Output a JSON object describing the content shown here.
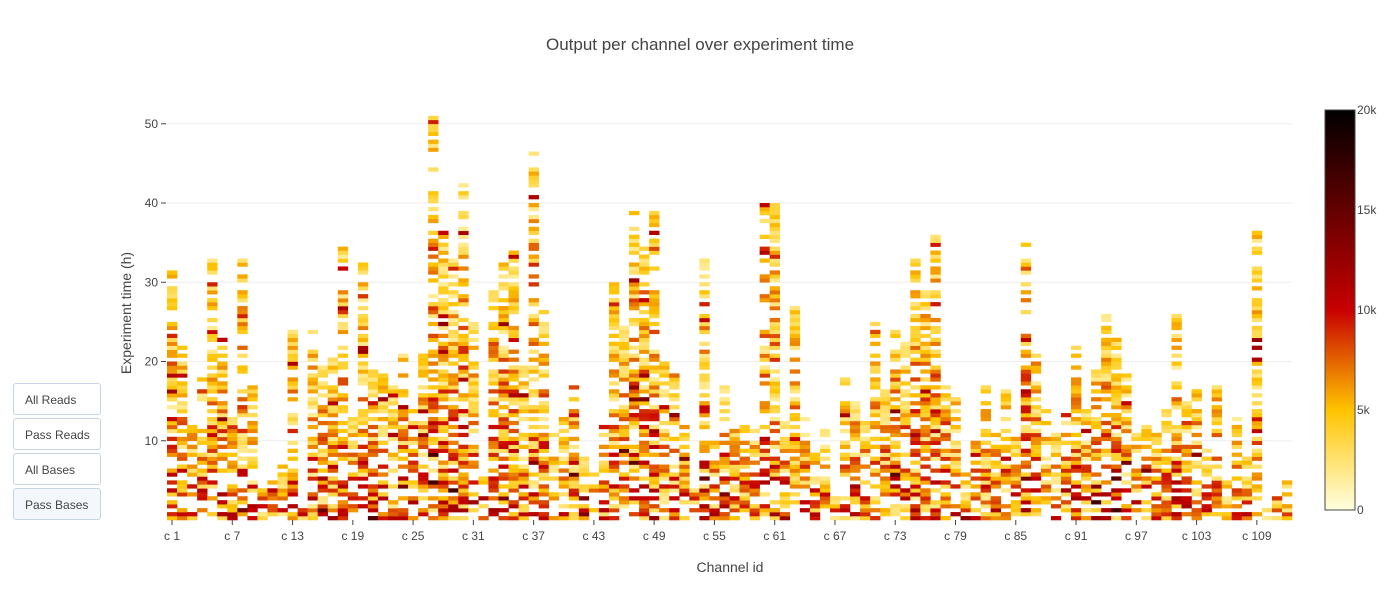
{
  "chart_data": {
    "type": "heatmap",
    "title": "Output per channel over experiment time",
    "xlabel": "Channel id",
    "ylabel": "Experiment time (h)",
    "x_tick_labels": [
      "c 1",
      "c 7",
      "c 13",
      "c 19",
      "c 25",
      "c 31",
      "c 37",
      "c 43",
      "c 49",
      "c 55",
      "c 61",
      "c 67",
      "c 73",
      "c 79",
      "c 85",
      "c 91",
      "c 97",
      "c 103",
      "c 109"
    ],
    "channel_count": 112,
    "ylim": [
      0,
      53
    ],
    "y_ticks": [
      10,
      20,
      30,
      40,
      50
    ],
    "grid": true,
    "colorbar": {
      "min": 0,
      "max": 20000,
      "ticks": [
        0,
        5000,
        10000,
        15000,
        20000
      ],
      "tick_labels": [
        "0",
        "5k",
        "10k",
        "15k",
        "20k"
      ]
    },
    "colorscale": [
      "#ffffe0",
      "#ffc400",
      "#c80000",
      "#000000"
    ],
    "channel_active_hours": [
      32,
      22,
      13,
      18,
      33,
      23,
      13,
      33,
      17,
      5,
      5,
      7,
      24,
      3,
      25,
      20,
      21,
      35,
      13,
      33,
      19,
      19,
      17,
      21,
      14,
      21,
      51,
      37,
      33,
      43,
      25,
      6,
      29,
      33,
      34,
      21,
      47,
      27,
      11,
      13,
      17,
      8,
      6,
      13,
      30,
      25,
      39,
      35,
      39,
      20,
      19,
      13,
      6,
      33,
      10,
      17,
      13,
      12,
      12,
      40,
      40,
      13,
      27,
      13,
      11,
      13,
      3,
      18,
      15,
      14,
      25,
      17,
      24,
      24,
      33,
      29,
      37,
      17,
      16,
      7,
      11,
      17,
      11,
      17,
      11,
      35,
      21,
      14,
      11,
      14,
      22,
      14,
      20,
      26,
      23,
      19,
      11,
      12,
      11,
      14,
      26,
      17,
      17,
      9,
      17,
      5,
      13,
      8,
      37,
      2,
      3,
      6
    ],
    "y_sparse_labels": [
      "Experiment time (h)"
    ]
  },
  "buttons": {
    "all_reads": "All Reads",
    "pass_reads": "Pass Reads",
    "all_bases": "All Bases",
    "pass_bases": "Pass Bases",
    "active": "pass_bases"
  },
  "colors": {
    "grid": "#eeeeee",
    "axis_text": "#444444",
    "button_border": "#c8d4e3"
  }
}
